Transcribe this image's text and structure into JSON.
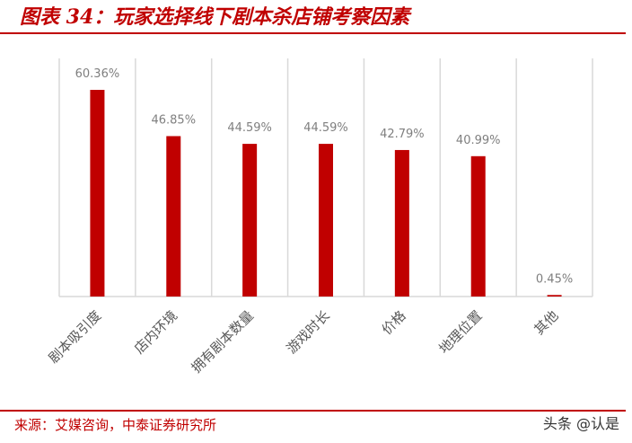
{
  "header": {
    "title": "图表 34：玩家选择线下剧本杀店铺考察因素"
  },
  "footer": {
    "source": "来源：艾媒咨询，中泰证券研究所",
    "watermark": "头条 @认是"
  },
  "colors": {
    "bar": "#c00000",
    "accent": "#c00000",
    "grid": "#d9d9d9"
  },
  "chart_data": {
    "type": "bar",
    "title": "图表 34：玩家选择线下剧本杀店铺考察因素",
    "xlabel": "",
    "ylabel": "",
    "categories": [
      "剧本吸引度",
      "店内环境",
      "拥有剧本数量",
      "游戏时长",
      "价格",
      "地理位置",
      "其他"
    ],
    "values": [
      60.36,
      46.85,
      44.59,
      44.59,
      42.79,
      40.99,
      0.45
    ],
    "value_labels": [
      "60.36%",
      "46.85%",
      "44.59%",
      "44.59%",
      "42.79%",
      "40.99%",
      "0.45%"
    ],
    "unit": "%",
    "ylim": [
      0,
      70
    ],
    "grid": true,
    "legend": "none"
  }
}
